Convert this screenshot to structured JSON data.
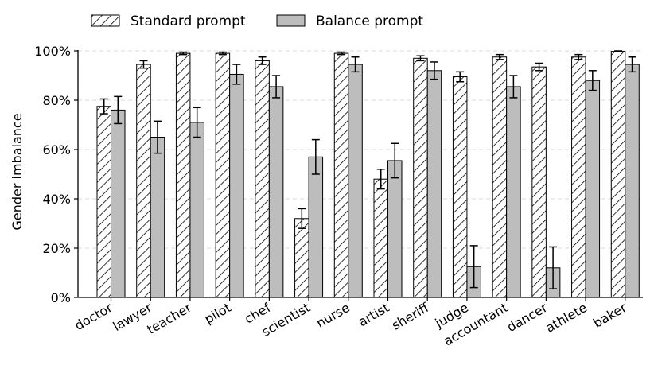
{
  "chart_data": {
    "type": "bar",
    "ylabel": "Gender imbalance",
    "xlabel": "",
    "ylim": [
      0,
      100
    ],
    "yticks": [
      "0%",
      "20%",
      "40%",
      "60%",
      "80%",
      "100%"
    ],
    "grid": "horizontal dashed",
    "legend_position": "top-left, outside",
    "categories": [
      "doctor",
      "lawyer",
      "teacher",
      "pilot",
      "chef",
      "scientist",
      "nurse",
      "artist",
      "sheriff",
      "judge",
      "accountant",
      "dancer",
      "athlete",
      "baker"
    ],
    "series": [
      {
        "name": "Standard prompt",
        "style": "hatched",
        "color": "#ffffff",
        "values": [
          77.5,
          94.5,
          99.0,
          99.0,
          96.0,
          32.0,
          99.0,
          48.0,
          97.0,
          89.5,
          97.5,
          93.5,
          97.5,
          99.8
        ],
        "errors": [
          3.0,
          1.5,
          0.5,
          0.5,
          1.5,
          4.0,
          0.5,
          4.0,
          1.0,
          2.0,
          1.0,
          1.5,
          1.0,
          0.2
        ]
      },
      {
        "name": "Balance prompt",
        "style": "solid",
        "color": "#bdbdbd",
        "values": [
          76.0,
          65.0,
          71.0,
          90.5,
          85.5,
          57.0,
          94.5,
          55.5,
          92.0,
          12.5,
          85.5,
          12.0,
          88.0,
          94.5
        ],
        "errors": [
          5.5,
          6.5,
          6.0,
          4.0,
          4.5,
          7.0,
          3.0,
          7.0,
          3.5,
          8.5,
          4.5,
          8.5,
          4.0,
          3.0
        ]
      }
    ]
  }
}
